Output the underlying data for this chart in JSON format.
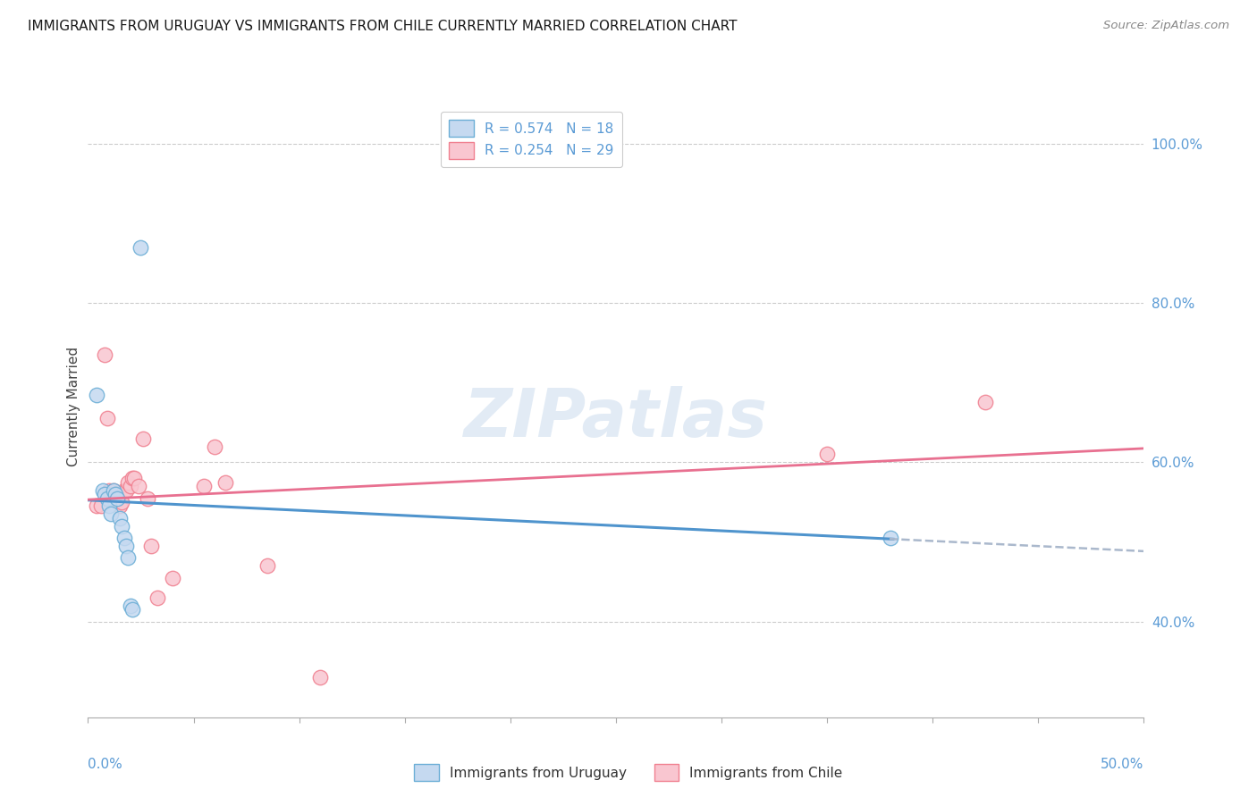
{
  "title": "IMMIGRANTS FROM URUGUAY VS IMMIGRANTS FROM CHILE CURRENTLY MARRIED CORRELATION CHART",
  "source": "Source: ZipAtlas.com",
  "ylabel": "Currently Married",
  "ylabel_right_ticks": [
    "100.0%",
    "80.0%",
    "60.0%",
    "40.0%"
  ],
  "ylabel_right_values": [
    1.0,
    0.8,
    0.6,
    0.4
  ],
  "xlim": [
    0.0,
    0.5
  ],
  "ylim": [
    0.28,
    1.06
  ],
  "watermark": "ZIPatlas",
  "legend_entry_1": "R = 0.574   N = 18",
  "legend_entry_2": "R = 0.254   N = 29",
  "legend_entry_1_r": "0.574",
  "legend_entry_1_n": "18",
  "legend_entry_2_r": "0.254",
  "legend_entry_2_n": "29",
  "uruguay_points_x": [
    0.004,
    0.007,
    0.008,
    0.009,
    0.01,
    0.011,
    0.012,
    0.013,
    0.014,
    0.015,
    0.016,
    0.017,
    0.018,
    0.019,
    0.02,
    0.021,
    0.025,
    0.38
  ],
  "uruguay_points_y": [
    0.685,
    0.565,
    0.56,
    0.555,
    0.545,
    0.535,
    0.565,
    0.56,
    0.555,
    0.53,
    0.52,
    0.505,
    0.495,
    0.48,
    0.42,
    0.415,
    0.87,
    0.505
  ],
  "chile_points_x": [
    0.004,
    0.006,
    0.008,
    0.009,
    0.01,
    0.012,
    0.013,
    0.014,
    0.015,
    0.016,
    0.017,
    0.018,
    0.019,
    0.02,
    0.021,
    0.022,
    0.024,
    0.026,
    0.028,
    0.03,
    0.033,
    0.04,
    0.055,
    0.06,
    0.065,
    0.085,
    0.11,
    0.35,
    0.425
  ],
  "chile_points_x_outlier": [
    0.11
  ],
  "chile_points_y": [
    0.545,
    0.545,
    0.735,
    0.655,
    0.565,
    0.565,
    0.56,
    0.555,
    0.545,
    0.55,
    0.565,
    0.565,
    0.575,
    0.57,
    0.58,
    0.58,
    0.57,
    0.63,
    0.555,
    0.495,
    0.43,
    0.455,
    0.57,
    0.62,
    0.575,
    0.47,
    0.33,
    0.61,
    0.675
  ],
  "uruguay_color": "#c5d9f0",
  "chile_color": "#f9c6d0",
  "uruguay_edge_color": "#6baed6",
  "chile_edge_color": "#f08090",
  "uruguay_line_color": "#4f94cd",
  "chile_line_color": "#e87090",
  "grid_color": "#cccccc",
  "title_color": "#1a1a1a",
  "axis_label_color": "#5b9bd5",
  "dashed_color": "#aab8cc",
  "bg_color": "#ffffff"
}
